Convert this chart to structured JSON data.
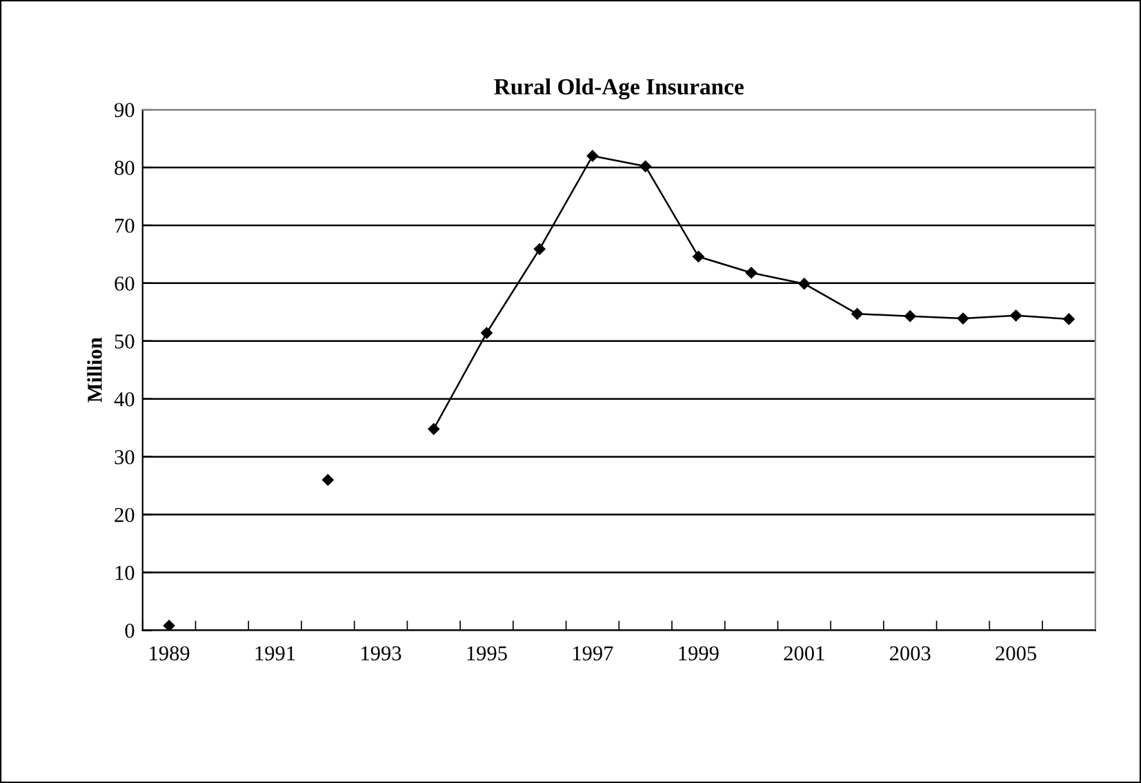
{
  "chart_data": {
    "type": "line",
    "title": "Rural Old-Age Insurance",
    "ylabel": "Million",
    "categories": [
      "1989",
      null,
      "1991",
      null,
      "1993",
      null,
      "1995",
      null,
      "1997",
      null,
      "1999",
      null,
      "2001",
      null,
      "2003",
      null,
      "2005",
      null
    ],
    "series": [
      {
        "color": "#000000",
        "values": [
          0.8,
          null,
          null,
          26,
          null,
          34.8,
          51.4,
          65.9,
          82,
          80.2,
          64.6,
          61.8,
          59.9,
          54.7,
          54.3,
          53.9,
          54.4,
          53.8
        ]
      }
    ],
    "ylim": [
      0,
      90
    ],
    "yticks": [
      0,
      10,
      20,
      30,
      40,
      50,
      60,
      70,
      80,
      90
    ],
    "grid": "y",
    "marker": "diamond",
    "line_style": "solid",
    "legend": false
  }
}
